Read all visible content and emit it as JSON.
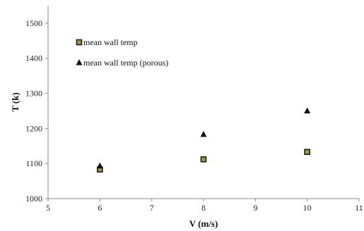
{
  "chart_data": {
    "type": "scatter",
    "xlabel": "V (m/s)",
    "ylabel": "T (k)",
    "xlim": [
      5,
      11
    ],
    "ylim": [
      1000,
      1550
    ],
    "xticks": [
      5,
      6,
      7,
      8,
      9,
      10,
      11
    ],
    "yticks": [
      1000,
      1100,
      1200,
      1300,
      1400,
      1500
    ],
    "grid": false,
    "legend_position": "top-left",
    "series": [
      {
        "name": "mean wall temp",
        "marker": "square",
        "color": "#1a1a1a",
        "fill": "#a89a3c",
        "points": [
          {
            "x": 6,
            "y": 1083
          },
          {
            "x": 8,
            "y": 1112
          },
          {
            "x": 10,
            "y": 1133
          }
        ]
      },
      {
        "name": "mean wall temp (porous)",
        "marker": "triangle",
        "color": "#111111",
        "points": [
          {
            "x": 6,
            "y": 1093
          },
          {
            "x": 8,
            "y": 1183
          },
          {
            "x": 10,
            "y": 1250
          }
        ]
      }
    ]
  }
}
